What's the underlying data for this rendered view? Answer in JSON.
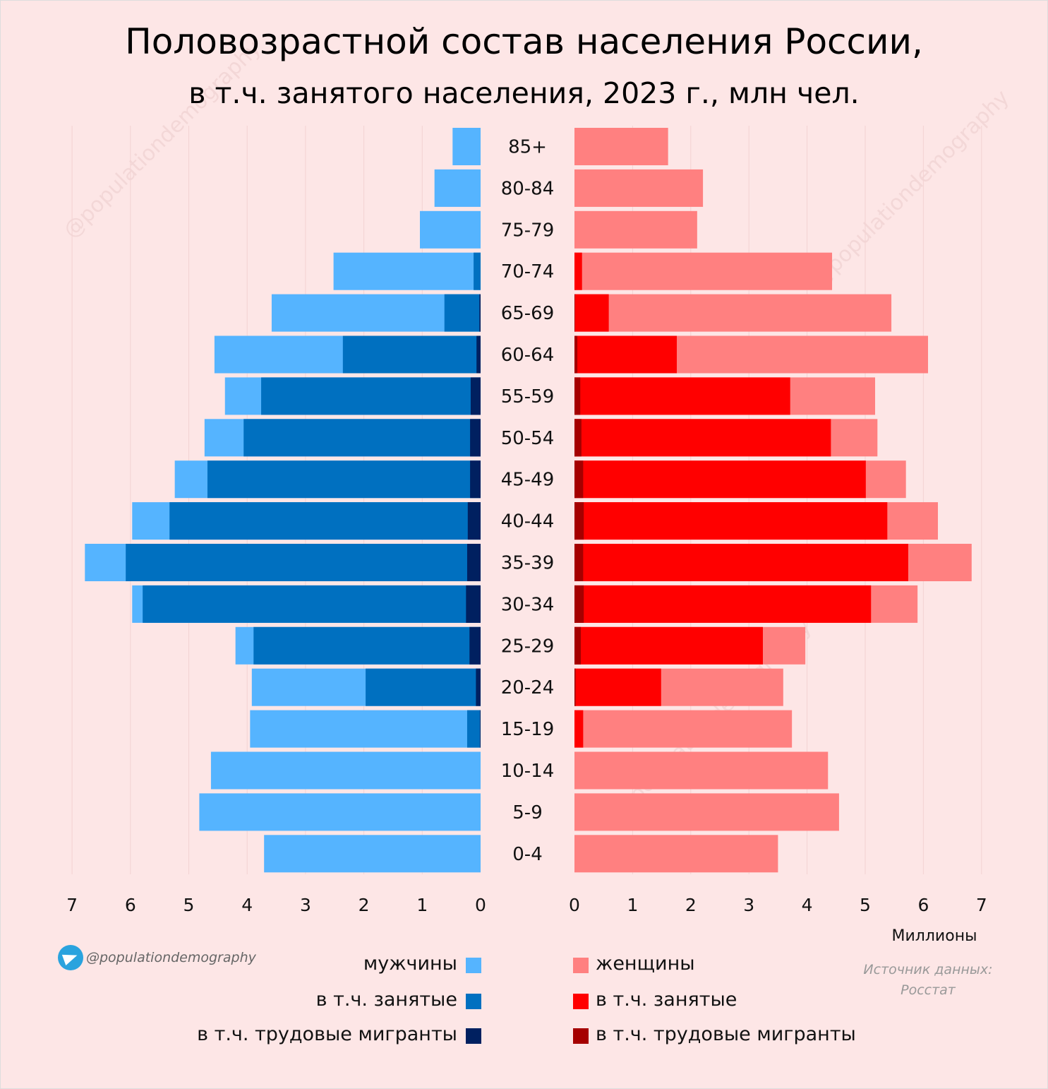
{
  "title": "Половозрастной состав населения России,",
  "subtitle": "в т.ч. занятого населения, 2023 г., млн чел.",
  "handle": "@populationdemography",
  "source_line1": "Источник данных:",
  "source_line2": "Росстат",
  "colors": {
    "men": "#55b4ff",
    "men_employed": "#0070c0",
    "men_migrants": "#002060",
    "women": "#ff8080",
    "women_employed": "#ff0000",
    "women_migrants": "#a50000",
    "background": "#fde6e6"
  },
  "legend": {
    "men": "мужчины",
    "men_employed": "в т.ч. занятые",
    "men_migrants": "в т.ч. трудовые мигранты",
    "women": "женщины",
    "women_employed": "в т.ч. занятые",
    "women_migrants": "в т.ч. трудовые мигранты"
  },
  "chart_data": {
    "type": "bar",
    "orientation": "horizontal population pyramid",
    "title": "Половозрастной состав населения России, в т.ч. занятого населения, 2023 г., млн чел.",
    "xlabel": "Миллионы",
    "xlim": [
      0,
      7
    ],
    "xticks": [
      "0",
      "1",
      "2",
      "3",
      "4",
      "5",
      "6",
      "7"
    ],
    "grid": true,
    "categories": [
      "85+",
      "80-84",
      "75-79",
      "70-74",
      "65-69",
      "60-64",
      "55-59",
      "50-54",
      "45-49",
      "40-44",
      "35-39",
      "30-34",
      "25-29",
      "20-24",
      "15-19",
      "10-14",
      "5-9",
      "0-4"
    ],
    "series": [
      {
        "name": "мужчины",
        "values": [
          0.48,
          0.79,
          1.04,
          2.52,
          3.58,
          4.56,
          4.38,
          4.73,
          5.24,
          5.97,
          6.78,
          5.97,
          4.2,
          3.92,
          3.95,
          4.62,
          4.82,
          3.71
        ]
      },
      {
        "name": "мужчины, в т.ч. занятые",
        "values": [
          0,
          0,
          0,
          0.12,
          0.62,
          2.36,
          3.76,
          4.06,
          4.68,
          5.33,
          6.08,
          5.79,
          3.89,
          1.97,
          0.23,
          0,
          0,
          0
        ]
      },
      {
        "name": "мужчины, в т.ч. трудовые мигранты",
        "values": [
          0,
          0,
          0,
          0,
          0.02,
          0.07,
          0.17,
          0.18,
          0.18,
          0.22,
          0.23,
          0.25,
          0.19,
          0.08,
          0.01,
          0,
          0,
          0
        ]
      },
      {
        "name": "женщины",
        "values": [
          1.61,
          2.21,
          2.11,
          4.43,
          5.45,
          6.08,
          5.17,
          5.21,
          5.7,
          6.25,
          6.83,
          5.9,
          3.97,
          3.59,
          3.74,
          4.36,
          4.55,
          3.5
        ]
      },
      {
        "name": "женщины, в т.ч. занятые",
        "values": [
          0,
          0,
          0,
          0.13,
          0.59,
          1.76,
          3.71,
          4.41,
          5.01,
          5.38,
          5.74,
          5.1,
          3.24,
          1.49,
          0.15,
          0,
          0,
          0
        ]
      },
      {
        "name": "женщины, в т.ч. трудовые мигранты",
        "values": [
          0,
          0,
          0,
          0,
          0.01,
          0.05,
          0.1,
          0.12,
          0.15,
          0.16,
          0.15,
          0.16,
          0.11,
          0.02,
          0,
          0,
          0,
          0
        ]
      }
    ]
  }
}
